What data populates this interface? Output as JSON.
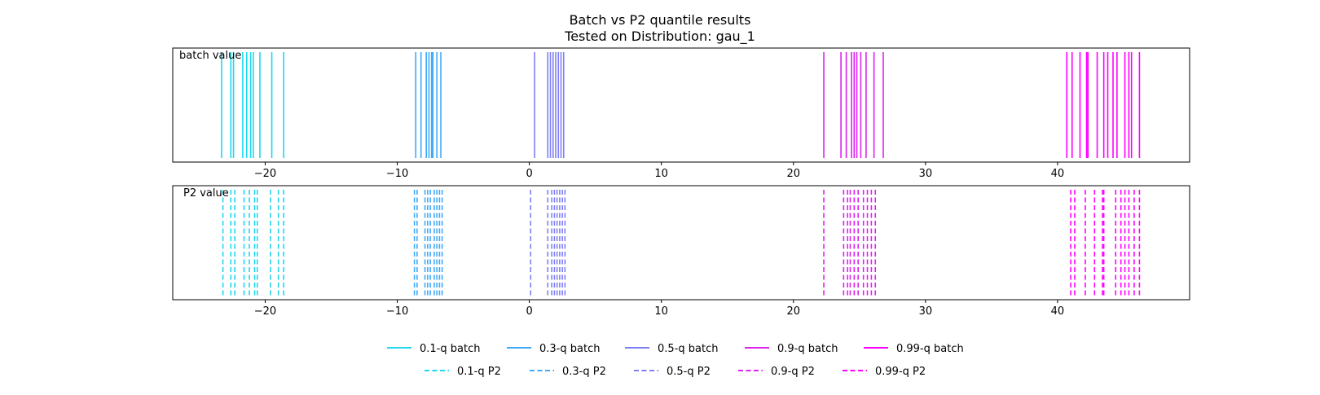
{
  "chart_data": {
    "type": "eventplot",
    "title": "Batch vs P2 quantile results",
    "subtitle": "Tested on Distribution: gau_1",
    "xlim": [
      -27,
      50
    ],
    "x_ticks": [
      -20,
      -10,
      0,
      10,
      20,
      30,
      40
    ],
    "x_tick_labels": [
      "−20",
      "−10",
      "0",
      "10",
      "20",
      "30",
      "40"
    ],
    "colors": {
      "q01": "#1fd7ee",
      "q03": "#40aaf7",
      "q05": "#7f7ff5",
      "q09": "#dd22ee",
      "q099": "#ff00ff"
    },
    "panels": [
      {
        "label": "batch value",
        "line_style": "solid",
        "series": [
          {
            "name": "0.1-q batch",
            "color_key": "q01",
            "values": [
              -23.3,
              -22.6,
              -22.4,
              -21.7,
              -21.4,
              -21.1,
              -20.9,
              -20.4,
              -19.5,
              -18.6
            ]
          },
          {
            "name": "0.3-q batch",
            "color_key": "q03",
            "values": [
              -8.6,
              -8.2,
              -7.8,
              -7.6,
              -7.4,
              -7.3,
              -7.0,
              -6.7
            ]
          },
          {
            "name": "0.5-q batch",
            "color_key": "q05",
            "values": [
              0.4,
              1.4,
              1.6,
              1.8,
              2.0,
              2.2,
              2.4,
              2.6
            ]
          },
          {
            "name": "0.9-q batch",
            "color_key": "q09",
            "values": [
              22.3,
              23.6,
              24.0,
              24.4,
              24.6,
              24.8,
              25.1,
              25.5,
              26.1,
              26.8
            ]
          },
          {
            "name": "0.99-q batch",
            "color_key": "q099",
            "values": [
              40.7,
              41.1,
              41.7,
              42.2,
              42.3,
              43.0,
              43.5,
              43.8,
              44.2,
              44.5,
              45.1,
              45.4,
              45.6,
              46.2
            ]
          }
        ]
      },
      {
        "label": "P2 value",
        "line_style": "dashed",
        "series": [
          {
            "name": "0.1-q P2",
            "color_key": "q01",
            "values": [
              -23.2,
              -22.6,
              -22.3,
              -21.6,
              -21.2,
              -20.8,
              -20.6,
              -19.6,
              -19.0,
              -18.6
            ]
          },
          {
            "name": "0.3-q P2",
            "color_key": "q03",
            "values": [
              -8.7,
              -8.5,
              -7.9,
              -7.7,
              -7.5,
              -7.2,
              -7.0,
              -6.8,
              -6.6
            ]
          },
          {
            "name": "0.5-q P2",
            "color_key": "q05",
            "values": [
              0.1,
              1.4,
              1.7,
              1.9,
              2.1,
              2.3,
              2.5,
              2.7
            ]
          },
          {
            "name": "0.9-q P2",
            "color_key": "q09",
            "values": [
              22.3,
              23.8,
              24.1,
              24.3,
              24.6,
              24.9,
              25.3,
              25.6,
              25.9,
              26.2
            ]
          },
          {
            "name": "0.99-q P2",
            "color_key": "q099",
            "values": [
              41.0,
              41.3,
              42.1,
              42.8,
              43.4,
              43.5,
              44.4,
              44.8,
              45.1,
              45.4,
              45.8,
              46.2
            ]
          }
        ]
      }
    ],
    "legend": {
      "placement": "bottom-center",
      "rows": [
        [
          {
            "label": "0.1-q batch",
            "color_key": "q01",
            "style": "solid"
          },
          {
            "label": "0.3-q batch",
            "color_key": "q03",
            "style": "solid"
          },
          {
            "label": "0.5-q batch",
            "color_key": "q05",
            "style": "solid"
          },
          {
            "label": "0.9-q batch",
            "color_key": "q09",
            "style": "solid"
          },
          {
            "label": "0.99-q batch",
            "color_key": "q099",
            "style": "solid"
          }
        ],
        [
          {
            "label": "0.1-q P2",
            "color_key": "q01",
            "style": "dashed"
          },
          {
            "label": "0.3-q P2",
            "color_key": "q03",
            "style": "dashed"
          },
          {
            "label": "0.5-q P2",
            "color_key": "q05",
            "style": "dashed"
          },
          {
            "label": "0.9-q P2",
            "color_key": "q09",
            "style": "dashed"
          },
          {
            "label": "0.99-q P2",
            "color_key": "q099",
            "style": "dashed"
          }
        ]
      ]
    }
  }
}
